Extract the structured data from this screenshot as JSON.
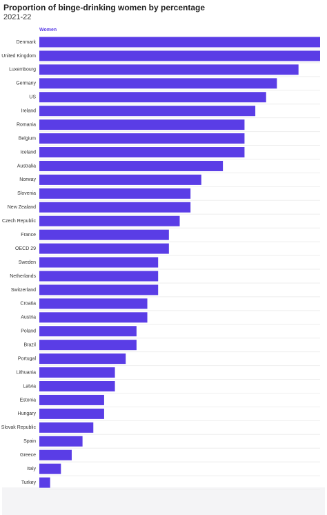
{
  "chart_data": {
    "type": "bar",
    "orientation": "horizontal",
    "title": "Proportion of binge-drinking women by percentage",
    "subtitle": "2021-22",
    "categories": [
      "Denmark",
      "United Kingdom",
      "Luxembourg",
      "Germany",
      "US",
      "Ireland",
      "Romania",
      "Belgium",
      "Iceland",
      "Australia",
      "Norway",
      "Slovenia",
      "New Zealand",
      "Czech Republic",
      "France",
      "OECD 29",
      "Sweden",
      "Netherlands",
      "Switzerland",
      "Croatia",
      "Austria",
      "Poland",
      "Brazil",
      "Portugal",
      "Lithuania",
      "Latvia",
      "Estonia",
      "Hungary",
      "Slovak Republic",
      "Spain",
      "Greece",
      "Italy",
      "Turkey"
    ],
    "series": [
      {
        "name": "Women",
        "color": "#5a3de6",
        "values": [
          26,
          26,
          24,
          22,
          21,
          20,
          19,
          19,
          19,
          17,
          15,
          14,
          14,
          13,
          12,
          12,
          11,
          11,
          11,
          10,
          10,
          9,
          9,
          8,
          7,
          7,
          6,
          6,
          5,
          4,
          3,
          2,
          1
        ]
      }
    ],
    "xlim": [
      0,
      26
    ]
  }
}
